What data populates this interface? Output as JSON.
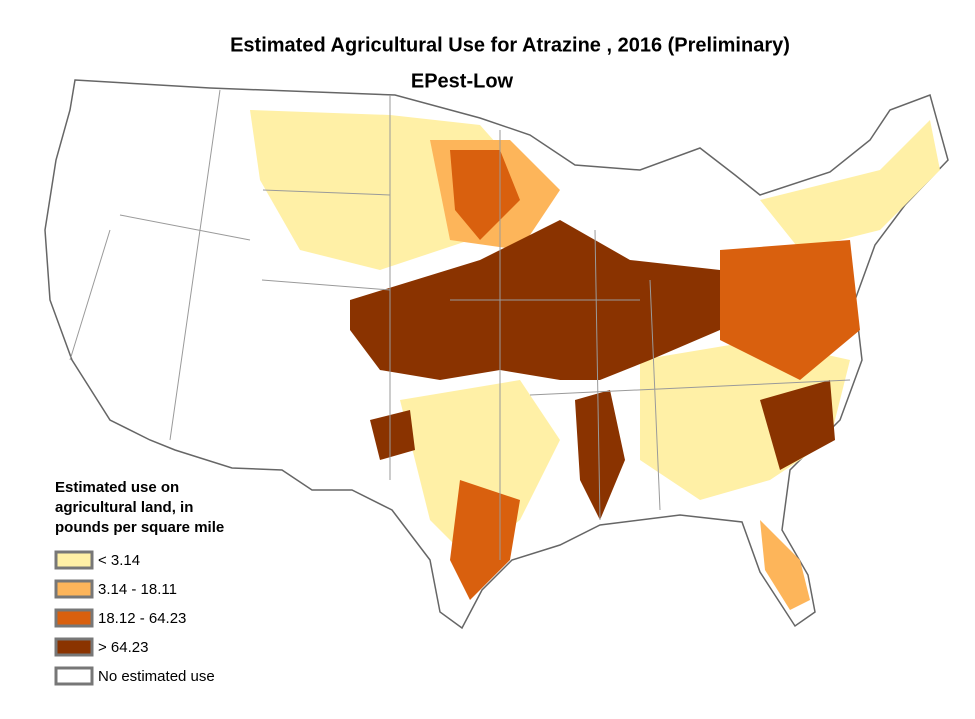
{
  "title": "Estimated Agricultural Use for Atrazine , 2016 (Preliminary)",
  "subtitle": "EPest-Low",
  "legend": {
    "title_lines": [
      "Estimated use on",
      "agricultural land, in",
      "pounds per square mile"
    ],
    "items": [
      {
        "label": "< 3.14",
        "color": "#fff0a6"
      },
      {
        "label": "3.14 - 18.11",
        "color": "#fdb55a"
      },
      {
        "label": "18.12 - 64.23",
        "color": "#d9600e"
      },
      {
        "label": "> 64.23",
        "color": "#8a3300"
      },
      {
        "label": "No estimated use",
        "color": "#ffffff"
      }
    ]
  }
}
